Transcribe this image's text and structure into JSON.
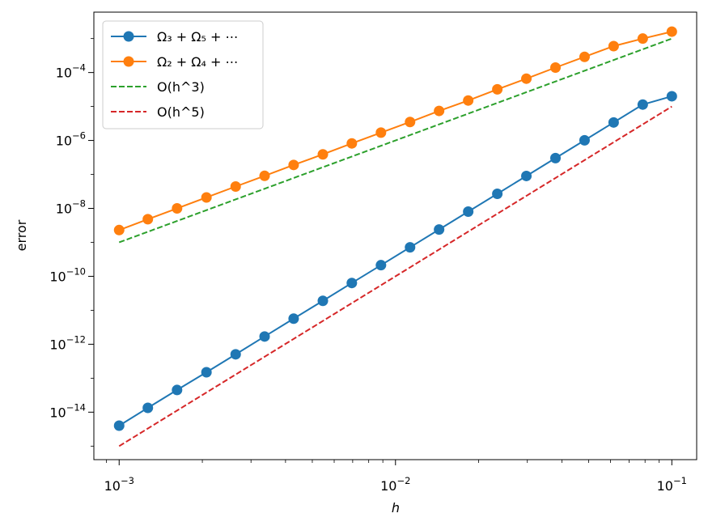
{
  "chart_data": {
    "type": "line",
    "xlabel": "h",
    "ylabel": "error",
    "xscale": "log",
    "yscale": "log",
    "xlim": [
      0.00081,
      0.123
    ],
    "ylim": [
      4e-16,
      0.006
    ],
    "x_ticks": [
      {
        "value": 0.001,
        "base": "10",
        "exp": "−3"
      },
      {
        "value": 0.01,
        "base": "10",
        "exp": "−2"
      },
      {
        "value": 0.1,
        "base": "10",
        "exp": "−1"
      }
    ],
    "y_ticks": [
      {
        "value": 1e-14,
        "base": "10",
        "exp": "−14"
      },
      {
        "value": 1e-12,
        "base": "10",
        "exp": "−12"
      },
      {
        "value": 1e-10,
        "base": "10",
        "exp": "−10"
      },
      {
        "value": 1e-08,
        "base": "10",
        "exp": "−8"
      },
      {
        "value": 1e-06,
        "base": "10",
        "exp": "−6"
      },
      {
        "value": 0.0001,
        "base": "10",
        "exp": "−4"
      }
    ],
    "legend_position": "top-left",
    "series": [
      {
        "name": "Ω₃ + Ω₅ + ⋯",
        "color": "#1f77b4",
        "style": "solid",
        "marker": "circle",
        "x": [
          0.001,
          0.00127,
          0.00162,
          0.00207,
          0.00264,
          0.00336,
          0.00428,
          0.00546,
          0.00695,
          0.00886,
          0.01129,
          0.01438,
          0.01833,
          0.02336,
          0.02976,
          0.03793,
          0.04833,
          0.06158,
          0.07848,
          0.1
        ],
        "y": [
          4e-15,
          1.34e-14,
          4.5e-14,
          1.5e-13,
          5.05e-13,
          1.69e-12,
          5.67e-12,
          1.9e-11,
          6.36e-11,
          2.13e-10,
          7.14e-10,
          2.39e-09,
          8.02e-09,
          2.69e-08,
          9e-08,
          3.02e-07,
          1.01e-06,
          3.39e-06,
          1.14e-05,
          2e-05
        ]
      },
      {
        "name": "Ω₂ + Ω₄ + ⋯",
        "color": "#ff7f0e",
        "style": "solid",
        "marker": "circle",
        "x": [
          0.001,
          0.00127,
          0.00162,
          0.00207,
          0.00264,
          0.00336,
          0.00428,
          0.00546,
          0.00695,
          0.00886,
          0.01129,
          0.01438,
          0.01833,
          0.02336,
          0.02976,
          0.03793,
          0.04833,
          0.06158,
          0.07848,
          0.1
        ],
        "y": [
          2.3e-09,
          4.8e-09,
          1e-08,
          2.1e-08,
          4.4e-08,
          9.1e-08,
          1.9e-07,
          3.9e-07,
          8.2e-07,
          1.7e-06,
          3.5e-06,
          7.4e-06,
          1.5e-05,
          3.2e-05,
          6.6e-05,
          0.00014,
          0.00029,
          0.0006,
          0.001,
          0.0016
        ]
      },
      {
        "name": "O(h^3)",
        "color": "#2ca02c",
        "style": "dashed",
        "marker": "none",
        "x": [
          0.001,
          0.1
        ],
        "y": [
          1e-09,
          0.001
        ]
      },
      {
        "name": "O(h^5)",
        "color": "#d62728",
        "style": "dashed",
        "marker": "none",
        "x": [
          0.001,
          0.1
        ],
        "y": [
          1e-15,
          1e-05
        ]
      }
    ]
  }
}
